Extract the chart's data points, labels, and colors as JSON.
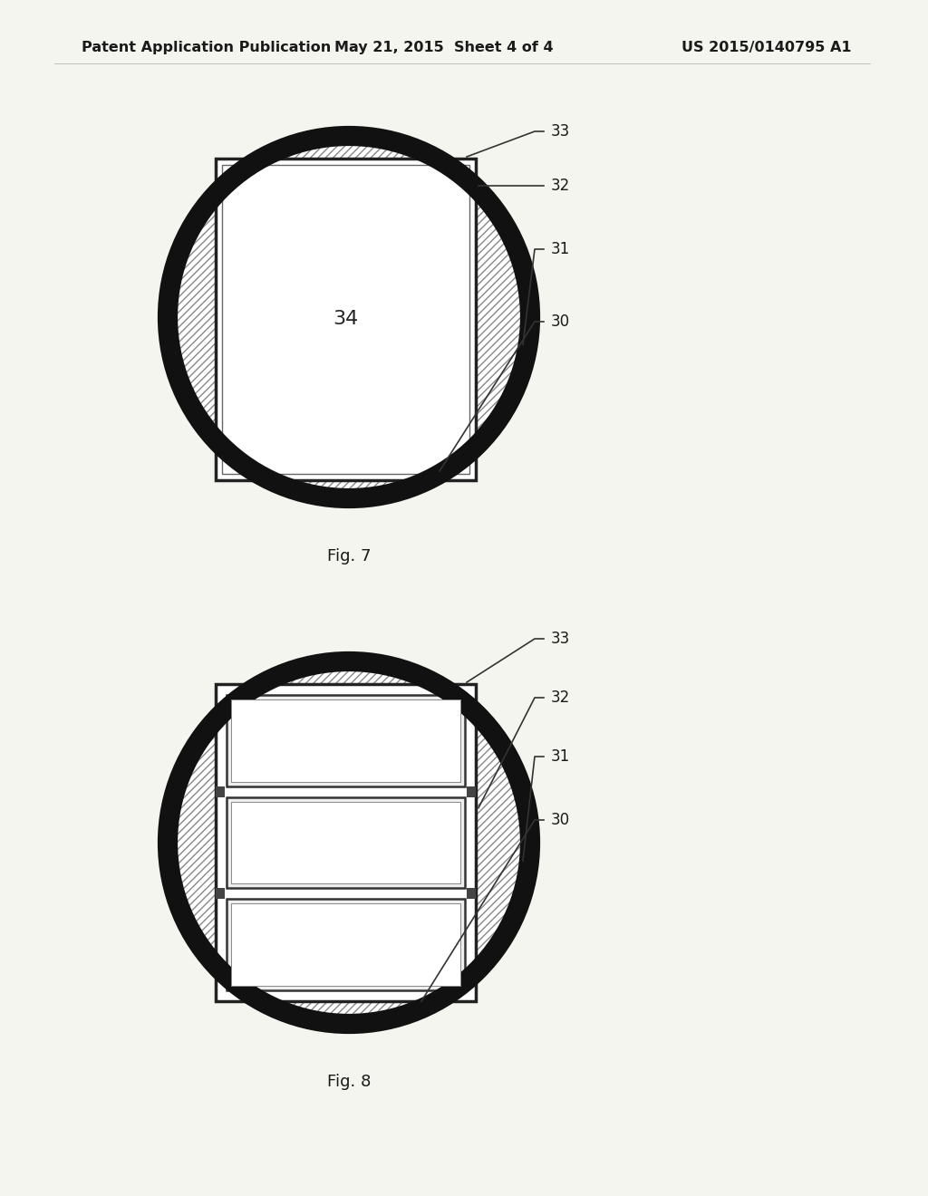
{
  "background_color": "#f5f5f0",
  "header_left": "Patent Application Publication",
  "header_center": "May 21, 2015  Sheet 4 of 4",
  "header_right": "US 2015/0140795 A1",
  "header_fontsize": 11.5,
  "fig7_label": "Fig. 7",
  "fig8_label": "Fig. 8",
  "label_color": "#1a1a1a",
  "circle_edge_color": "#111111",
  "circle_linewidth": 16,
  "hatch_color": "#777777",
  "label_fontsize": 12,
  "caption_fontsize": 13
}
